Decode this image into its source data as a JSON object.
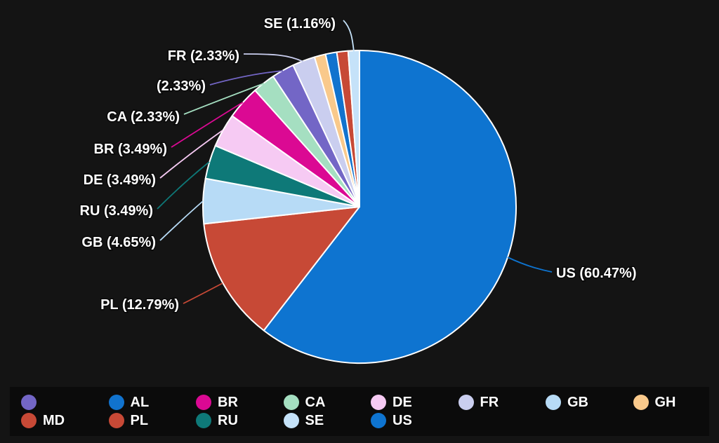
{
  "theme": {
    "background": "#141414",
    "legend_background": "#0b0b0b",
    "slice_border": "#ffffff",
    "label_text": "#ffffff"
  },
  "chart_data": {
    "type": "pie",
    "title": "",
    "value_format": "percent",
    "start_angle_deg": 0,
    "direction": "clockwise",
    "legend_position": "bottom",
    "series": [
      {
        "name": "US",
        "label": "US (60.47%)",
        "percent": 60.47,
        "color": "#0e74d0",
        "labeled": true
      },
      {
        "name": "PL",
        "label": "PL (12.79%)",
        "percent": 12.79,
        "color": "#c74936",
        "labeled": true
      },
      {
        "name": "GB",
        "label": "GB (4.65%)",
        "percent": 4.65,
        "color": "#b7dbf6",
        "labeled": true
      },
      {
        "name": "RU",
        "label": "RU (3.49%)",
        "percent": 3.49,
        "color": "#0e7978",
        "labeled": true
      },
      {
        "name": "DE",
        "label": "DE (3.49%)",
        "percent": 3.49,
        "color": "#f6caf3",
        "labeled": true
      },
      {
        "name": "BR",
        "label": "BR (3.49%)",
        "percent": 3.49,
        "color": "#db0993",
        "labeled": true
      },
      {
        "name": "CA",
        "label": "CA (2.33%)",
        "percent": 2.33,
        "color": "#a5dfc1",
        "labeled": true
      },
      {
        "name": "",
        "label": "(2.33%)",
        "percent": 2.33,
        "color": "#7366c6",
        "labeled": true
      },
      {
        "name": "FR",
        "label": "FR (2.33%)",
        "percent": 2.33,
        "color": "#caceef",
        "labeled": true
      },
      {
        "name": "GH",
        "label": "",
        "percent": 1.16,
        "color": "#f9c98b",
        "labeled": false
      },
      {
        "name": "AL",
        "label": "",
        "percent": 1.16,
        "color": "#1173ce",
        "labeled": false
      },
      {
        "name": "MD",
        "label": "",
        "percent": 1.16,
        "color": "#c74936",
        "labeled": false
      },
      {
        "name": "SE",
        "label": "SE (1.16%)",
        "percent": 1.16,
        "color": "#c5e2f9",
        "labeled": true
      }
    ],
    "legend": {
      "rows": 2,
      "columns": 8,
      "items": [
        {
          "label": "",
          "color": "#7366c6"
        },
        {
          "label": "AL",
          "color": "#1173ce"
        },
        {
          "label": "BR",
          "color": "#db0993"
        },
        {
          "label": "CA",
          "color": "#a5dfc1"
        },
        {
          "label": "DE",
          "color": "#f6caf3"
        },
        {
          "label": "FR",
          "color": "#caceef"
        },
        {
          "label": "GB",
          "color": "#b7dbf6"
        },
        {
          "label": "GH",
          "color": "#f9c98b"
        },
        {
          "label": "MD",
          "color": "#c74936"
        },
        {
          "label": "PL",
          "color": "#c74936"
        },
        {
          "label": "RU",
          "color": "#0e7978"
        },
        {
          "label": "SE",
          "color": "#c5e2f9"
        },
        {
          "label": "US",
          "color": "#0e74d0"
        }
      ]
    }
  }
}
